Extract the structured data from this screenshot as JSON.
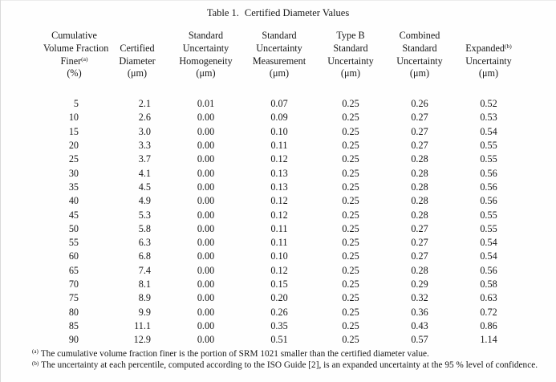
{
  "page": {
    "background": "#ffffff",
    "text_color": "#161616"
  },
  "title": {
    "label": "Table 1.",
    "text": "Certified Diameter Values"
  },
  "table": {
    "columns": [
      {
        "id": "cumulative-volume-fraction-finer",
        "lines": [
          "Cumulative",
          "Volume Fraction",
          "Finer^(a)",
          "(%)"
        ]
      },
      {
        "id": "certified-diameter",
        "lines": [
          "Certified",
          "Diameter",
          "(μm)"
        ]
      },
      {
        "id": "standard-uncertainty-homogeneity",
        "lines": [
          "Standard",
          "Uncertainty",
          "Homogeneity",
          "(μm)"
        ]
      },
      {
        "id": "standard-uncertainty-measurement",
        "lines": [
          "Standard",
          "Uncertainty",
          "Measurement",
          "(μm)"
        ]
      },
      {
        "id": "type-b-standard-uncertainty",
        "lines": [
          "Type B",
          "Standard",
          "Uncertainty",
          "(μm)"
        ]
      },
      {
        "id": "combined-standard-uncertainty",
        "lines": [
          "Combined",
          "Standard",
          "Uncertainty",
          "(μm)"
        ]
      },
      {
        "id": "expanded-uncertainty",
        "lines": [
          "Expanded^(b)",
          "Uncertainty",
          "(μm)"
        ]
      }
    ],
    "rows": [
      [
        "5",
        "2.1",
        "0.01",
        "0.07",
        "0.25",
        "0.26",
        "0.52"
      ],
      [
        "10",
        "2.6",
        "0.00",
        "0.09",
        "0.25",
        "0.27",
        "0.53"
      ],
      [
        "15",
        "3.0",
        "0.00",
        "0.10",
        "0.25",
        "0.27",
        "0.54"
      ],
      [
        "20",
        "3.3",
        "0.00",
        "0.11",
        "0.25",
        "0.27",
        "0.55"
      ],
      [
        "25",
        "3.7",
        "0.00",
        "0.12",
        "0.25",
        "0.28",
        "0.55"
      ],
      [
        "30",
        "4.1",
        "0.00",
        "0.13",
        "0.25",
        "0.28",
        "0.56"
      ],
      [
        "35",
        "4.5",
        "0.00",
        "0.13",
        "0.25",
        "0.28",
        "0.56"
      ],
      [
        "40",
        "4.9",
        "0.00",
        "0.12",
        "0.25",
        "0.28",
        "0.56"
      ],
      [
        "45",
        "5.3",
        "0.00",
        "0.12",
        "0.25",
        "0.28",
        "0.55"
      ],
      [
        "50",
        "5.8",
        "0.00",
        "0.11",
        "0.25",
        "0.27",
        "0.55"
      ],
      [
        "55",
        "6.3",
        "0.00",
        "0.11",
        "0.25",
        "0.27",
        "0.54"
      ],
      [
        "60",
        "6.8",
        "0.00",
        "0.10",
        "0.25",
        "0.27",
        "0.54"
      ],
      [
        "65",
        "7.4",
        "0.00",
        "0.12",
        "0.25",
        "0.28",
        "0.56"
      ],
      [
        "70",
        "8.1",
        "0.00",
        "0.15",
        "0.25",
        "0.29",
        "0.58"
      ],
      [
        "75",
        "8.9",
        "0.00",
        "0.20",
        "0.25",
        "0.32",
        "0.63"
      ],
      [
        "80",
        "9.9",
        "0.00",
        "0.26",
        "0.25",
        "0.36",
        "0.72"
      ],
      [
        "85",
        "11.1",
        "0.00",
        "0.35",
        "0.25",
        "0.43",
        "0.86"
      ],
      [
        "90",
        "12.9",
        "0.00",
        "0.51",
        "0.25",
        "0.57",
        "1.14"
      ]
    ]
  },
  "footnotes": [
    {
      "marker": "(a)",
      "text": "The cumulative volume fraction finer is the portion of SRM 1021 smaller than the certified diameter value."
    },
    {
      "marker": "(b)",
      "text": "The uncertainty at each percentile, computed according to the ISO Guide [2], is an expanded uncertainty at the 95 % level of confidence."
    }
  ]
}
